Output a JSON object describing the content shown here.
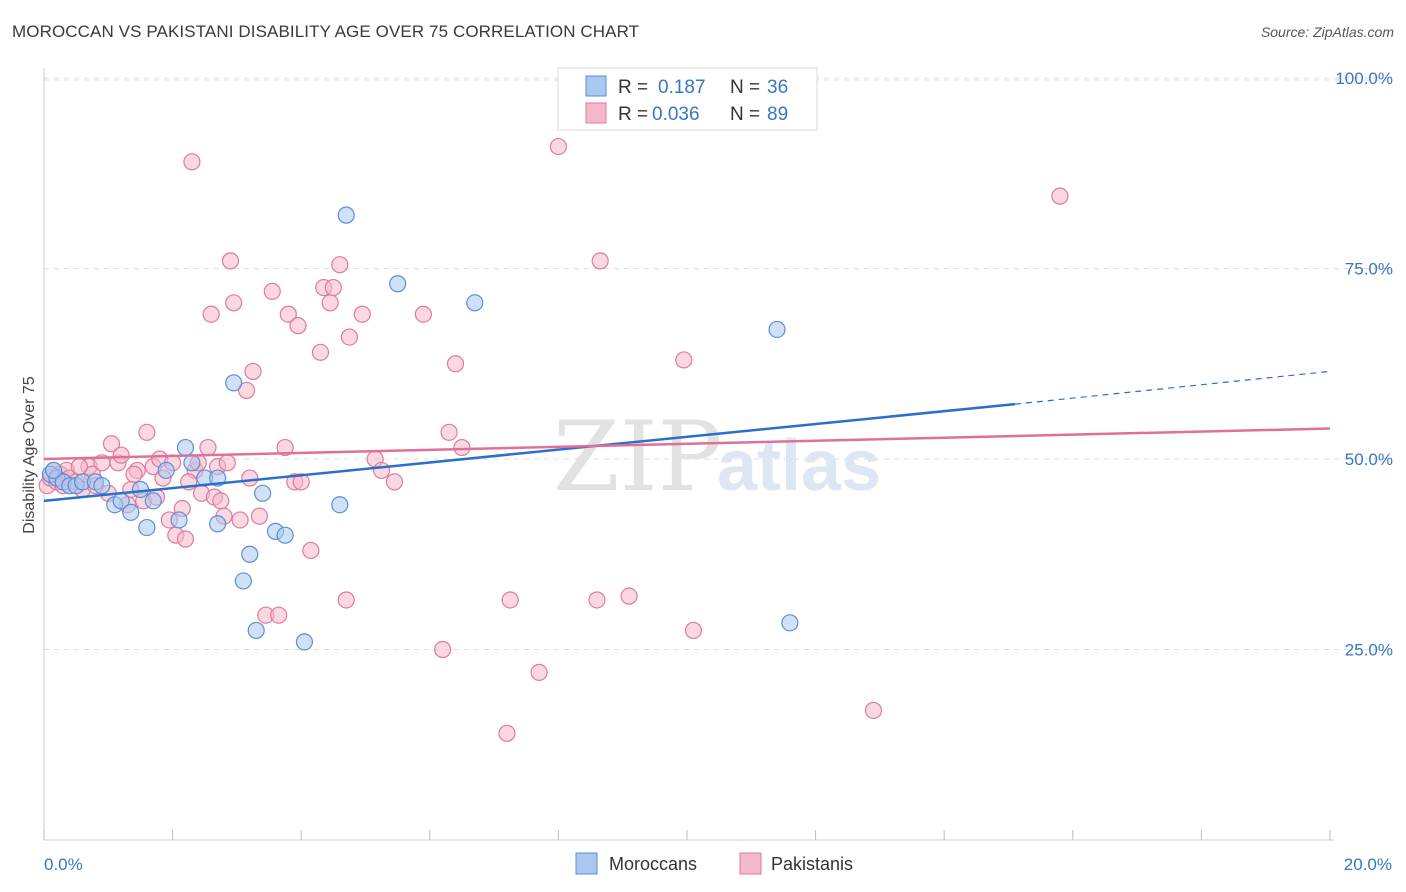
{
  "title": "MOROCCAN VS PAKISTANI DISABILITY AGE OVER 75 CORRELATION CHART",
  "source": "Source: ZipAtlas.com",
  "watermark": {
    "zip": "ZIP",
    "atlas": "atlas"
  },
  "colors": {
    "blue_fill": "#aac8ef",
    "blue_stroke": "#5b8fd6",
    "blue_line": "#2b6fcc",
    "pink_fill": "#f4b8cb",
    "pink_stroke": "#e07a9c",
    "pink_line": "#e0709a",
    "grid": "#dddddd",
    "tick_text": "#3a75c4"
  },
  "legend": {
    "rows": [
      {
        "r_label": "R = ",
        "r_value": "0.187",
        "n_label": "N = ",
        "n_value": "36"
      },
      {
        "r_label": "R = ",
        "r_value": "0.036",
        "n_label": "N = ",
        "n_value": "89"
      }
    ]
  },
  "bottom_legend": [
    "Moroccans",
    "Pakistanis"
  ],
  "chart_data": {
    "type": "scatter",
    "title": "MOROCCAN VS PAKISTANI DISABILITY AGE OVER 75 CORRELATION CHART",
    "xlabel": "",
    "ylabel": "Disability Age Over 75",
    "xlim": [
      0,
      20
    ],
    "ylim": [
      0,
      105
    ],
    "x_tick_labels": [
      "0.0%",
      "20.0%"
    ],
    "y_ticks": [
      25,
      50,
      75,
      100
    ],
    "y_tick_labels": [
      "25.0%",
      "50.0%",
      "75.0%",
      "100.0%"
    ],
    "grid": true,
    "series": [
      {
        "name": "Moroccans",
        "R": 0.187,
        "N": 36,
        "trend": {
          "x0": 0,
          "y0": 44.5,
          "x1": 15.1,
          "y1": 57.2,
          "dashed_to_x": 20,
          "dashed_to_y": 61.5
        },
        "points": [
          [
            0.1,
            48
          ],
          [
            0.2,
            47.5
          ],
          [
            0.3,
            47
          ],
          [
            0.4,
            46.5
          ],
          [
            0.5,
            46.5
          ],
          [
            0.6,
            47
          ],
          [
            0.8,
            47
          ],
          [
            0.9,
            46.5
          ],
          [
            1.1,
            44
          ],
          [
            1.2,
            44.5
          ],
          [
            1.35,
            43
          ],
          [
            1.5,
            46
          ],
          [
            1.6,
            41
          ],
          [
            1.7,
            44.5
          ],
          [
            1.9,
            48.5
          ],
          [
            2.1,
            42
          ],
          [
            2.2,
            51.5
          ],
          [
            2.3,
            49.5
          ],
          [
            2.5,
            47.5
          ],
          [
            2.7,
            47.5
          ],
          [
            2.7,
            41.5
          ],
          [
            2.95,
            60
          ],
          [
            3.1,
            34
          ],
          [
            3.2,
            37.5
          ],
          [
            3.3,
            27.5
          ],
          [
            3.4,
            45.5
          ],
          [
            3.6,
            40.5
          ],
          [
            3.75,
            40
          ],
          [
            4.05,
            26
          ],
          [
            4.6,
            44
          ],
          [
            4.7,
            82
          ],
          [
            5.5,
            73
          ],
          [
            6.7,
            70.5
          ],
          [
            11.4,
            67
          ],
          [
            11.6,
            28.5
          ],
          [
            0.15,
            48.5
          ]
        ]
      },
      {
        "name": "Pakistanis",
        "R": 0.036,
        "N": 89,
        "trend": {
          "x0": 0,
          "y0": 50,
          "x1": 20,
          "y1": 54
        },
        "points": [
          [
            0.05,
            46.5
          ],
          [
            0.1,
            47.5
          ],
          [
            0.15,
            48.5
          ],
          [
            0.2,
            47
          ],
          [
            0.25,
            48
          ],
          [
            0.3,
            46.5
          ],
          [
            0.35,
            48.5
          ],
          [
            0.4,
            47.5
          ],
          [
            0.5,
            47
          ],
          [
            0.6,
            46
          ],
          [
            0.7,
            49
          ],
          [
            0.75,
            48
          ],
          [
            0.8,
            46.5
          ],
          [
            0.9,
            49.5
          ],
          [
            1.0,
            45.5
          ],
          [
            1.05,
            52
          ],
          [
            1.15,
            49.5
          ],
          [
            1.2,
            50.5
          ],
          [
            1.3,
            44
          ],
          [
            1.35,
            46
          ],
          [
            1.45,
            48.5
          ],
          [
            1.55,
            44.5
          ],
          [
            1.6,
            53.5
          ],
          [
            1.7,
            49
          ],
          [
            1.75,
            45
          ],
          [
            1.8,
            50
          ],
          [
            1.85,
            47.5
          ],
          [
            1.95,
            42
          ],
          [
            2.0,
            49.5
          ],
          [
            2.05,
            40
          ],
          [
            2.15,
            43.5
          ],
          [
            2.2,
            39.5
          ],
          [
            2.3,
            89
          ],
          [
            2.35,
            48.5
          ],
          [
            2.4,
            49.5
          ],
          [
            2.45,
            45.5
          ],
          [
            2.55,
            51.5
          ],
          [
            2.6,
            69
          ],
          [
            2.65,
            45
          ],
          [
            2.7,
            49
          ],
          [
            2.75,
            44.5
          ],
          [
            2.8,
            42.5
          ],
          [
            2.85,
            49.5
          ],
          [
            2.9,
            76
          ],
          [
            2.95,
            70.5
          ],
          [
            3.05,
            42
          ],
          [
            3.15,
            59
          ],
          [
            3.2,
            47.5
          ],
          [
            3.25,
            61.5
          ],
          [
            3.35,
            42.5
          ],
          [
            3.45,
            29.5
          ],
          [
            3.55,
            72
          ],
          [
            3.65,
            29.5
          ],
          [
            3.75,
            51.5
          ],
          [
            3.8,
            69
          ],
          [
            3.9,
            47
          ],
          [
            3.95,
            67.5
          ],
          [
            4.0,
            47
          ],
          [
            4.15,
            38
          ],
          [
            4.3,
            64
          ],
          [
            4.35,
            72.5
          ],
          [
            4.45,
            70.5
          ],
          [
            4.5,
            72.5
          ],
          [
            4.6,
            75.5
          ],
          [
            4.7,
            31.5
          ],
          [
            4.75,
            66
          ],
          [
            4.95,
            69
          ],
          [
            5.15,
            50
          ],
          [
            5.25,
            48.5
          ],
          [
            5.45,
            47
          ],
          [
            5.9,
            69
          ],
          [
            6.2,
            25
          ],
          [
            6.3,
            53.5
          ],
          [
            6.4,
            62.5
          ],
          [
            6.5,
            51.5
          ],
          [
            7.2,
            14
          ],
          [
            7.25,
            31.5
          ],
          [
            7.7,
            22
          ],
          [
            8.0,
            91
          ],
          [
            8.6,
            31.5
          ],
          [
            8.65,
            76
          ],
          [
            9.1,
            32
          ],
          [
            9.95,
            63
          ],
          [
            10.1,
            27.5
          ],
          [
            12.9,
            17
          ],
          [
            15.8,
            84.5
          ],
          [
            0.55,
            49
          ],
          [
            1.4,
            48
          ],
          [
            2.25,
            47
          ]
        ]
      }
    ]
  }
}
